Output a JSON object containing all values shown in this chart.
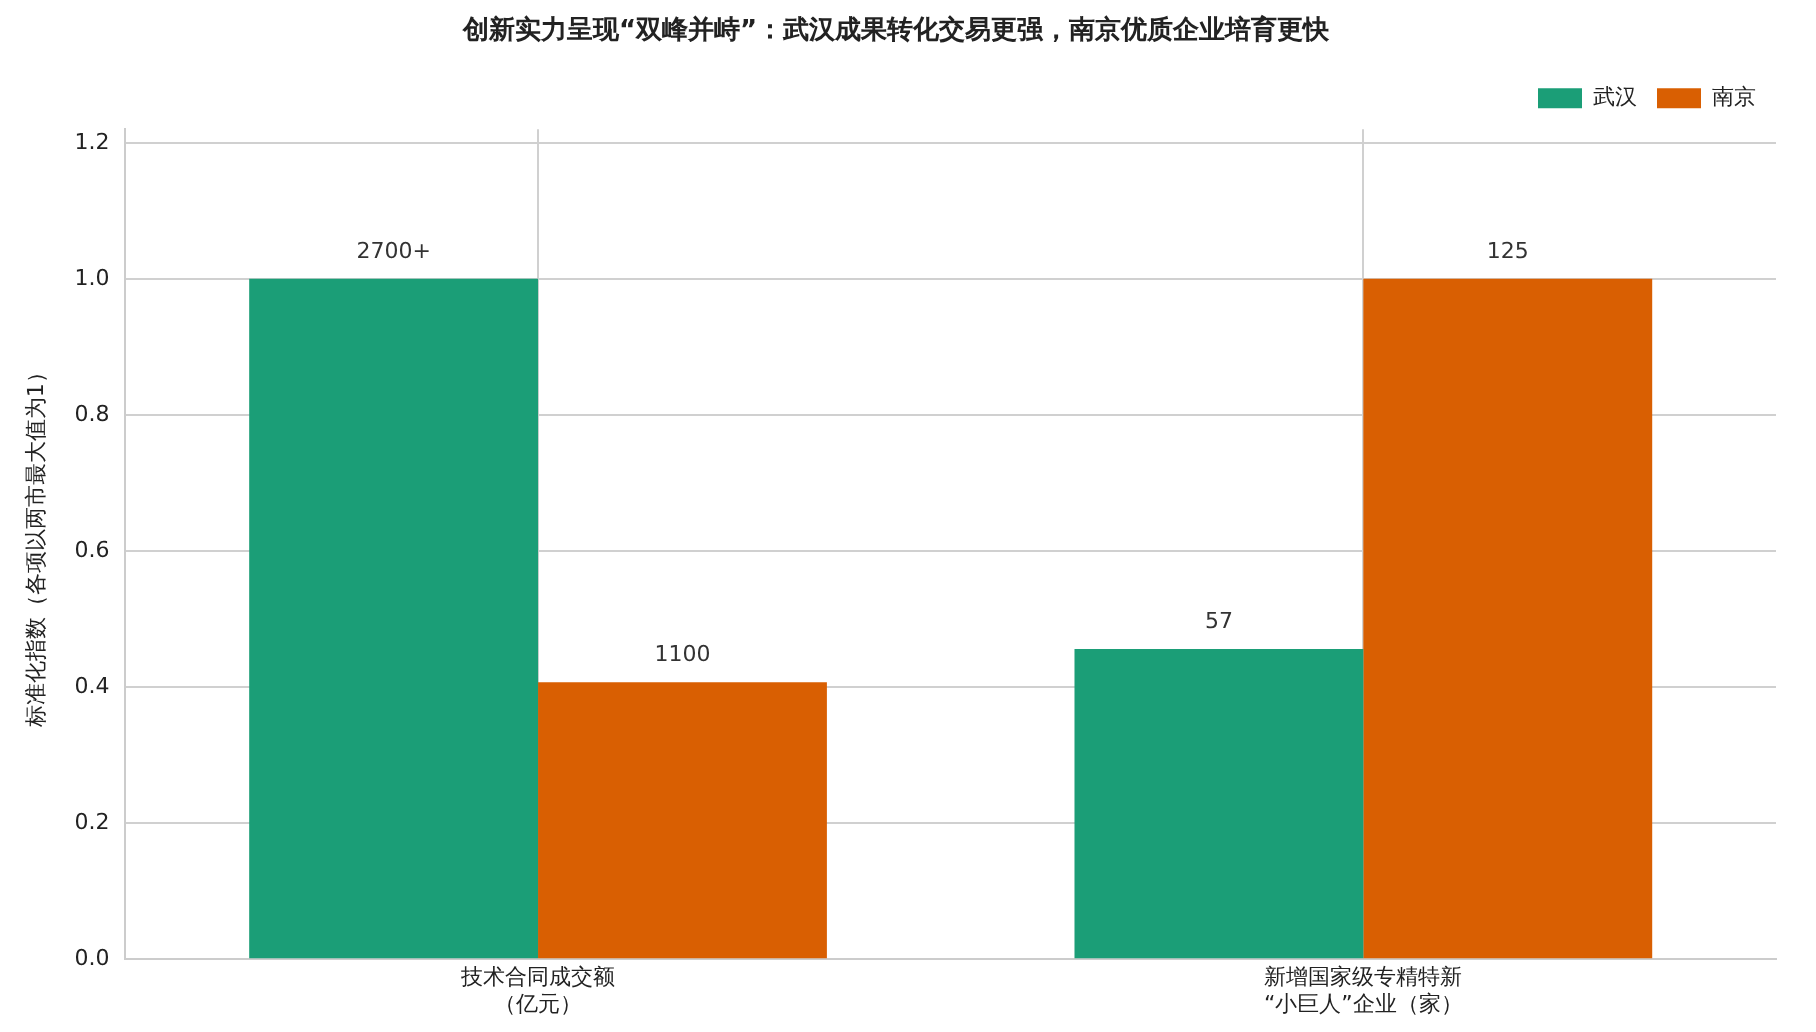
{
  "chart_data": {
    "type": "bar",
    "title": "创新实力呈现“双峰并峙”：武汉成果转化交易更强，南京优质企业培育更快",
    "ylabel": "标准化指数（各项以两市最大值为1）",
    "categories": [
      "技术合同成交额（亿元）",
      "新增国家级专精特新“小巨人”企业（家）"
    ],
    "series": [
      {
        "name": "武汉",
        "color": "#1b9e77",
        "values": [
          1.0,
          0.456
        ]
      },
      {
        "name": "南京",
        "color": "#d95f02",
        "values": [
          0.407,
          1.0
        ]
      }
    ],
    "annotations": [
      "2700+",
      "1100",
      "57",
      "125"
    ],
    "ylim": [
      0,
      1.22
    ],
    "yticks": [
      {
        "value": 0,
        "label": "0.0"
      },
      {
        "value": 0.2,
        "label": "0.2"
      },
      {
        "value": 0.4,
        "label": "0.4"
      },
      {
        "value": 0.6,
        "label": "0.6"
      },
      {
        "value": 0.8,
        "label": "0.8"
      },
      {
        "value": 1,
        "label": "1.0"
      },
      {
        "value": 1.2,
        "label": "1.2"
      }
    ],
    "grid": true,
    "legend": "top right"
  }
}
